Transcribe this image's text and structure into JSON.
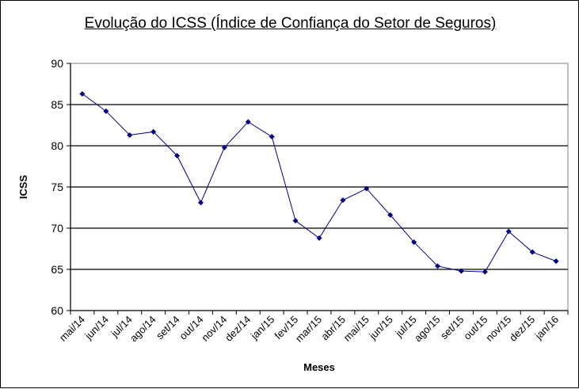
{
  "chart_data": {
    "type": "line",
    "title": "Evolução do ICSS (Índice de Confiança do Setor de Seguros)",
    "xlabel": "Meses",
    "ylabel": "ICSS",
    "ylim": [
      60,
      90
    ],
    "yticks": [
      60,
      65,
      70,
      75,
      80,
      85,
      90
    ],
    "grid": true,
    "legend": "none",
    "categories": [
      "mai/14",
      "jun/14",
      "jul/14",
      "ago/14",
      "set/14",
      "out/14",
      "nov/14",
      "dez/14",
      "jan/15",
      "fev/15",
      "mar/15",
      "abr/15",
      "mai/15",
      "jun/15",
      "jul/15",
      "ago/15",
      "set/15",
      "out/15",
      "nov/15",
      "dez/15",
      "jan/16"
    ],
    "series": [
      {
        "values": [
          86.3,
          84.2,
          81.3,
          81.7,
          78.8,
          73.1,
          79.8,
          82.9,
          81.1,
          70.9,
          68.8,
          73.4,
          74.8,
          71.6,
          68.3,
          65.4,
          64.8,
          64.7,
          69.6,
          67.1,
          66.0
        ],
        "color": "#000080"
      }
    ]
  }
}
